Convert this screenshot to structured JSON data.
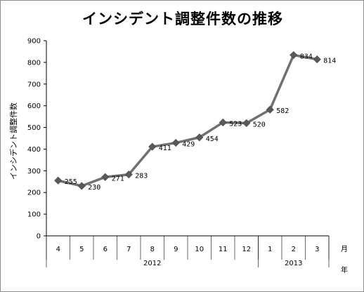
{
  "chart_data": {
    "type": "line",
    "title": "インシデント調整件数の推移",
    "ylabel": "インシデント調整件数",
    "ylim": [
      0,
      900
    ],
    "yticks": [
      0,
      100,
      200,
      300,
      400,
      500,
      600,
      700,
      800,
      900
    ],
    "categories": [
      "4",
      "5",
      "6",
      "7",
      "8",
      "9",
      "10",
      "11",
      "12",
      "1",
      "2",
      "3"
    ],
    "month_axis_label": "月",
    "year_axis_label": "年",
    "year_groups": [
      {
        "label": "2012",
        "count": 9
      },
      {
        "label": "2013",
        "count": 3
      }
    ],
    "values": [
      255,
      230,
      271,
      283,
      411,
      429,
      454,
      523,
      520,
      582,
      834,
      814
    ],
    "series_color": "#707070",
    "grid": false,
    "legend": "none"
  }
}
